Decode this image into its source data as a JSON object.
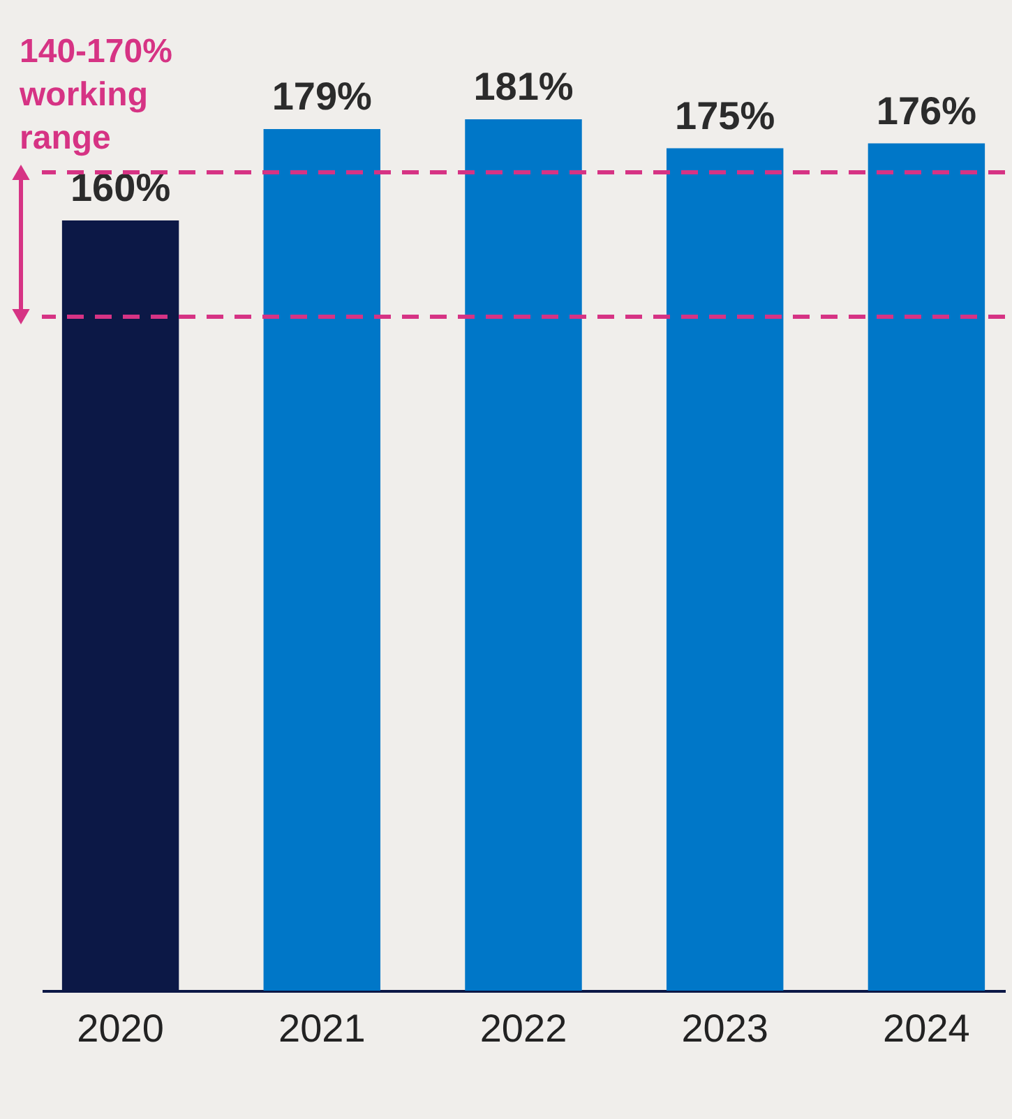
{
  "chart_data": {
    "type": "bar",
    "categories": [
      "2020",
      "2021",
      "2022",
      "2023",
      "2024"
    ],
    "values": [
      160,
      179,
      181,
      175,
      176
    ],
    "value_labels": [
      "160%",
      "179%",
      "181%",
      "175%",
      "176%"
    ],
    "colors": [
      "#0c1846",
      "#0077c8",
      "#0077c8",
      "#0077c8",
      "#0077c8"
    ],
    "tick_labels": "x",
    "ref_lines": [
      {
        "axis": "y",
        "value": 170,
        "color": "#d63384",
        "line_style": "dashed"
      },
      {
        "axis": "y",
        "value": 140,
        "color": "#d63384",
        "line_style": "dashed"
      }
    ],
    "annotations": [
      "140-170% working range"
    ]
  }
}
